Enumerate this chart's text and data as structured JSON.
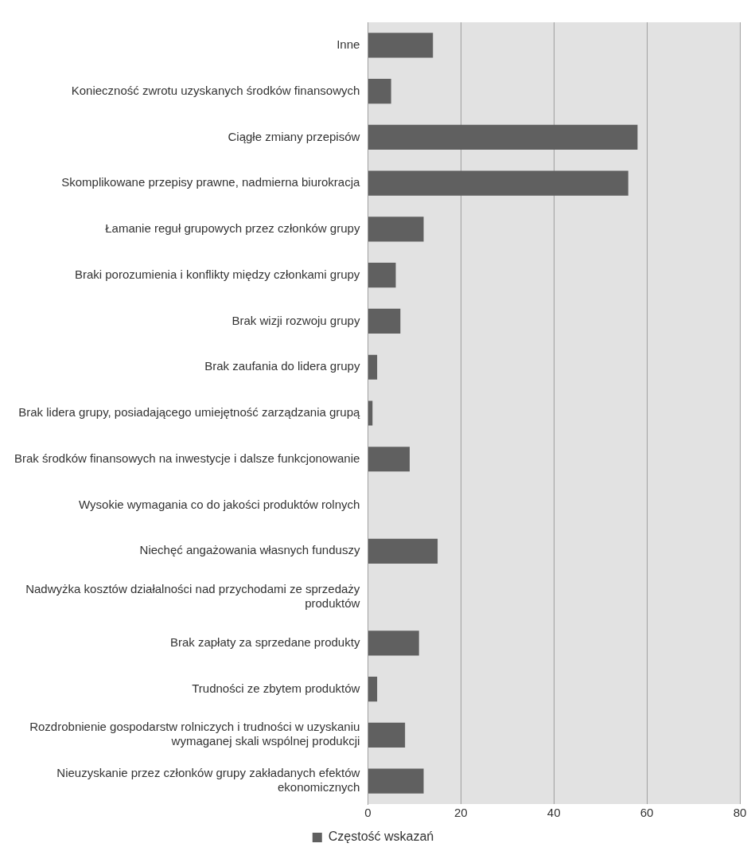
{
  "chart_data": {
    "type": "bar",
    "orientation": "horizontal",
    "categories": [
      "Inne",
      "Konieczność zwrotu uzyskanych środków finansowych",
      "Ciągłe zmiany przepisów",
      "Skomplikowane przepisy prawne, nadmierna biurokracja",
      "Łamanie reguł grupowych przez członków grupy",
      "Braki porozumienia i konflikty między członkami grupy",
      "Brak wizji rozwoju grupy",
      "Brak zaufania do lidera grupy",
      "Brak lidera grupy, posiadającego umiejętność zarządzania grupą",
      "Brak środków finansowych na inwestycje i dalsze funkcjonowanie",
      "Wysokie wymagania co do jakości produktów rolnych",
      "Niechęć angażowania własnych funduszy",
      "Nadwyżka kosztów działalności nad przychodami ze sprzedaży produktów",
      "Brak zapłaty za sprzedane produkty",
      "Trudności ze zbytem produktów",
      "Rozdrobnienie gospodarstw rolniczych i trudności w uzyskaniu wymaganej skali wspólnej produkcji",
      "Nieuzyskanie przez członków grupy zakładanych efektów ekonomicznych"
    ],
    "series": [
      {
        "name": "Częstość wskazań",
        "color": "#606060",
        "values": [
          14,
          5,
          58,
          56,
          12,
          6,
          7,
          2,
          1,
          9,
          0,
          15,
          0,
          11,
          2,
          8,
          12
        ]
      }
    ],
    "xlim": [
      0,
      80
    ],
    "xticks": [
      0,
      20,
      40,
      60,
      80
    ],
    "grid": "x",
    "legend": "bottom"
  }
}
